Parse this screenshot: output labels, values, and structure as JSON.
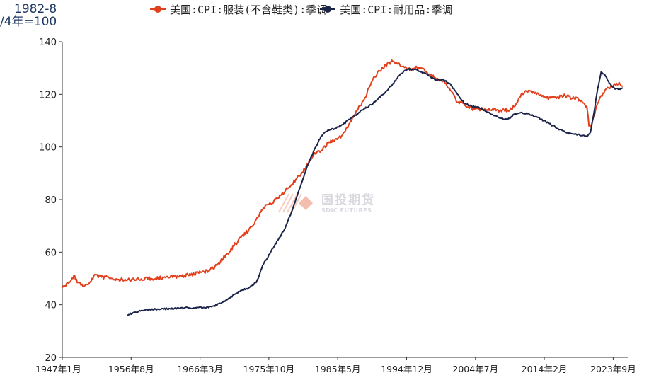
{
  "chart_data": {
    "type": "line",
    "unit_label_line1": "1982-8",
    "unit_label_line2": "/4年=100",
    "ylim": [
      20,
      140
    ],
    "yticks": [
      20,
      40,
      60,
      80,
      100,
      120,
      140
    ],
    "xlim": [
      1947.0,
      2025.7
    ],
    "xtick_labels": [
      "1947年1月",
      "1956年8月",
      "1966年3月",
      "1975年10月",
      "1985年5月",
      "1994年12月",
      "2004年7月",
      "2014年2月",
      "2023年9月"
    ],
    "xtick_positions": [
      1947.0,
      1956.58,
      1966.17,
      1975.75,
      1985.33,
      1994.92,
      2004.5,
      2014.08,
      2023.67
    ],
    "grid": false,
    "legend_position": "top",
    "series": [
      {
        "name": "美国:CPI:服装(不含鞋类):季调",
        "color": "#e2401c",
        "marker": "circle",
        "x": [
          1947.0,
          1948.0,
          1948.6,
          1949.2,
          1950.0,
          1950.8,
          1951.5,
          1952.5,
          1954.0,
          1956.0,
          1958.0,
          1960.0,
          1962.0,
          1964.0,
          1966.0,
          1967.5,
          1968.5,
          1970.0,
          1971.5,
          1973.5,
          1974.5,
          1975.0,
          1976.0,
          1977.0,
          1978.5,
          1980.0,
          1981.0,
          1982.0,
          1983.0,
          1984.0,
          1985.0,
          1986.0,
          1987.0,
          1988.0,
          1989.0,
          1990.0,
          1991.0,
          1992.0,
          1993.0,
          1994.0,
          1995.0,
          1996.0,
          1997.0,
          1998.0,
          1999.0,
          2000.0,
          2001.0,
          2002.0,
          2003.0,
          2004.0,
          2005.0,
          2006.0,
          2007.0,
          2008.0,
          2009.0,
          2010.0,
          2011.0,
          2012.0,
          2013.0,
          2014.0,
          2015.0,
          2016.0,
          2017.0,
          2018.0,
          2019.0,
          2020.0,
          2020.3,
          2020.6,
          2021.0,
          2021.5,
          2022.0,
          2022.5,
          2023.0,
          2023.5,
          2024.0,
          2024.5,
          2025.0
        ],
        "values": [
          46.5,
          48.5,
          51.0,
          48.5,
          46.8,
          48.5,
          51.5,
          50.5,
          50.0,
          49.3,
          49.8,
          50.0,
          50.5,
          51.0,
          52.0,
          53.0,
          55.0,
          59.5,
          64.5,
          70.0,
          75.0,
          77.0,
          78.5,
          80.5,
          84.5,
          89.0,
          93.0,
          97.0,
          98.5,
          101.5,
          103.0,
          104.5,
          109.0,
          114.0,
          118.0,
          124.5,
          129.0,
          131.0,
          132.5,
          131.0,
          129.5,
          130.0,
          130.0,
          127.5,
          126.0,
          125.0,
          121.5,
          117.0,
          116.0,
          114.5,
          114.5,
          114.0,
          114.0,
          114.0,
          114.0,
          115.5,
          120.5,
          121.5,
          120.0,
          119.0,
          118.5,
          119.0,
          119.5,
          118.5,
          118.0,
          115.5,
          108.0,
          107.5,
          112.0,
          116.5,
          119.5,
          121.5,
          122.5,
          123.0,
          123.5,
          124.5,
          123.0
        ]
      },
      {
        "name": "美国:CPI:耐用品:季调",
        "color": "#1b2448",
        "marker": "circle",
        "x": [
          1956.0,
          1957.0,
          1958.0,
          1960.0,
          1962.0,
          1964.0,
          1966.0,
          1967.0,
          1968.0,
          1969.0,
          1970.0,
          1971.0,
          1972.0,
          1973.0,
          1974.0,
          1975.0,
          1976.0,
          1977.0,
          1978.0,
          1979.0,
          1980.0,
          1981.0,
          1982.0,
          1983.0,
          1984.0,
          1985.0,
          1986.0,
          1987.0,
          1988.0,
          1989.0,
          1990.0,
          1991.0,
          1992.0,
          1993.0,
          1994.0,
          1995.0,
          1996.0,
          1997.0,
          1998.0,
          1999.0,
          2000.0,
          2001.0,
          2002.0,
          2003.0,
          2004.0,
          2005.0,
          2006.0,
          2007.0,
          2008.0,
          2009.0,
          2010.0,
          2011.0,
          2012.0,
          2013.0,
          2014.0,
          2015.0,
          2016.0,
          2017.0,
          2018.0,
          2019.0,
          2020.0,
          2020.5,
          2021.0,
          2021.5,
          2022.0,
          2022.5,
          2023.0,
          2023.5,
          2024.0,
          2024.5,
          2025.0
        ],
        "values": [
          36.0,
          37.0,
          37.8,
          38.3,
          38.5,
          38.8,
          39.0,
          38.8,
          39.5,
          40.5,
          42.0,
          44.0,
          45.5,
          46.5,
          48.5,
          55.5,
          60.0,
          64.5,
          69.0,
          76.0,
          84.0,
          92.0,
          98.5,
          104.0,
          106.5,
          107.0,
          108.5,
          110.5,
          112.5,
          114.5,
          116.0,
          118.5,
          121.0,
          124.0,
          127.5,
          129.5,
          129.5,
          128.5,
          127.0,
          125.5,
          125.5,
          124.0,
          120.0,
          116.5,
          115.5,
          115.0,
          113.5,
          112.0,
          111.0,
          110.5,
          112.5,
          113.0,
          112.5,
          111.5,
          110.0,
          108.5,
          107.0,
          105.5,
          105.0,
          104.5,
          104.0,
          105.5,
          113.0,
          122.0,
          128.5,
          127.5,
          125.0,
          123.0,
          122.0,
          122.0,
          122.5
        ]
      }
    ]
  },
  "watermark": {
    "name_cn": "国投期货",
    "name_en": "SDIC FUTURES"
  }
}
